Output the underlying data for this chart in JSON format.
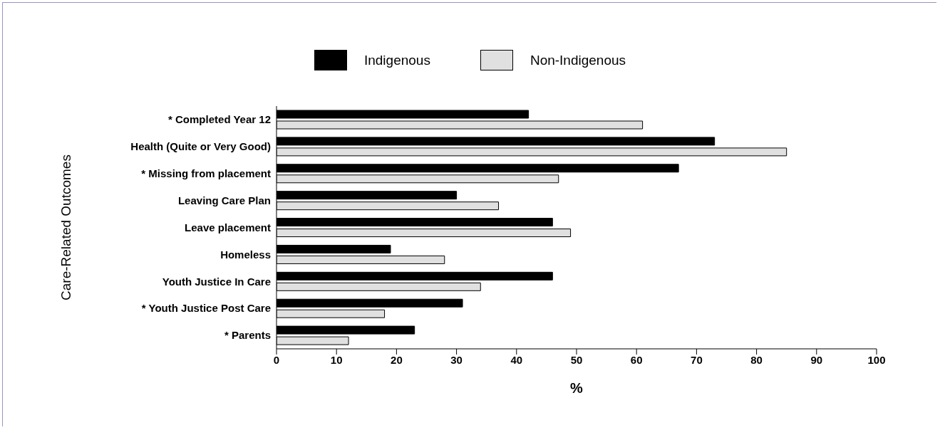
{
  "chart_data": {
    "type": "bar",
    "orientation": "horizontal",
    "xlabel": "%",
    "ylabel": "Care-Related Outcomes",
    "categories": [
      "* Completed Year 12",
      "Health (Quite or Very Good)",
      "* Missing from placement",
      "Leaving Care Plan",
      "Leave placement",
      "Homeless",
      "Youth Justice In Care",
      "* Youth Justice Post Care",
      "* Parents"
    ],
    "series": [
      {
        "name": "Indigenous",
        "color": "#000000",
        "values": [
          42,
          73,
          67,
          30,
          46,
          19,
          46,
          31,
          23
        ]
      },
      {
        "name": "Non-Indigenous",
        "color": "#e0e0e0",
        "values": [
          61,
          85,
          47,
          37,
          49,
          28,
          34,
          18,
          12
        ]
      }
    ],
    "xlim": [
      0,
      100
    ],
    "xticks": [
      0,
      10,
      20,
      30,
      40,
      50,
      60,
      70,
      80,
      90,
      100
    ],
    "legend": "top",
    "grid": false
  }
}
